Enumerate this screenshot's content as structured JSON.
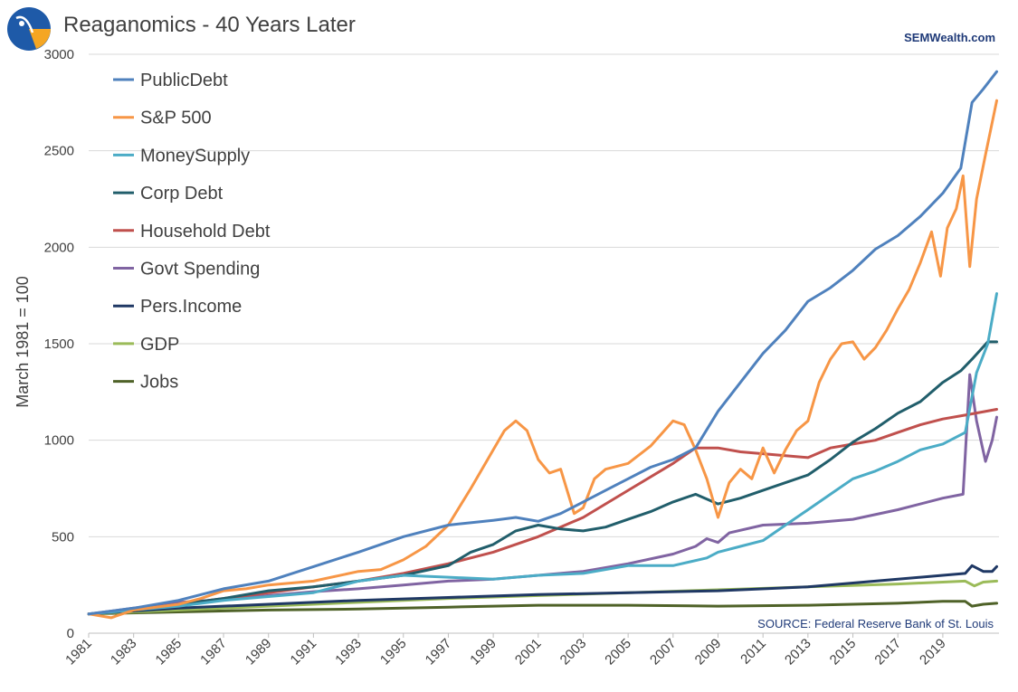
{
  "header": {
    "title": "Reaganomics - 40 Years Later",
    "brand": "SEMWealth.com"
  },
  "logo": {
    "icon": "semwealth-logo-icon",
    "colors": [
      "#1e5aa8",
      "#f5a623",
      "#ffffff"
    ]
  },
  "chart_data": {
    "type": "line",
    "title": "Reaganomics - 40 Years Later",
    "ylabel": "March 1981 = 100",
    "xlabel": "",
    "source": "SOURCE:  Federal Reserve Bank of St. Louis",
    "ylim": [
      0,
      3000
    ],
    "xlim": [
      1981,
      2021.5
    ],
    "yticks": [
      0,
      500,
      1000,
      1500,
      2000,
      2500,
      3000
    ],
    "xticks": [
      1981,
      1983,
      1985,
      1987,
      1989,
      1991,
      1993,
      1995,
      1997,
      1999,
      2001,
      2003,
      2005,
      2007,
      2009,
      2011,
      2013,
      2015,
      2017,
      2019
    ],
    "grid": "horizontal",
    "legend_position": "top-left",
    "series": [
      {
        "name": "PublicDebt",
        "color": "#4f81bd",
        "points": [
          [
            1981,
            100
          ],
          [
            1983,
            130
          ],
          [
            1985,
            170
          ],
          [
            1987,
            230
          ],
          [
            1989,
            270
          ],
          [
            1991,
            345
          ],
          [
            1993,
            420
          ],
          [
            1995,
            500
          ],
          [
            1997,
            560
          ],
          [
            1999,
            585
          ],
          [
            2000,
            600
          ],
          [
            2001,
            580
          ],
          [
            2002,
            620
          ],
          [
            2003,
            680
          ],
          [
            2004,
            740
          ],
          [
            2005,
            800
          ],
          [
            2006,
            860
          ],
          [
            2007,
            900
          ],
          [
            2008,
            960
          ],
          [
            2009,
            1150
          ],
          [
            2010,
            1300
          ],
          [
            2011,
            1450
          ],
          [
            2012,
            1570
          ],
          [
            2013,
            1720
          ],
          [
            2014,
            1790
          ],
          [
            2015,
            1880
          ],
          [
            2016,
            1990
          ],
          [
            2017,
            2060
          ],
          [
            2018,
            2160
          ],
          [
            2019,
            2280
          ],
          [
            2019.8,
            2410
          ],
          [
            2020.3,
            2750
          ],
          [
            2020.8,
            2820
          ],
          [
            2021.4,
            2910
          ]
        ]
      },
      {
        "name": "S&P 500",
        "color": "#f79646",
        "points": [
          [
            1981,
            100
          ],
          [
            1982,
            80
          ],
          [
            1983,
            120
          ],
          [
            1985,
            150
          ],
          [
            1986,
            180
          ],
          [
            1987,
            220
          ],
          [
            1988,
            230
          ],
          [
            1989,
            250
          ],
          [
            1991,
            270
          ],
          [
            1993,
            320
          ],
          [
            1994,
            330
          ],
          [
            1995,
            380
          ],
          [
            1996,
            450
          ],
          [
            1997,
            560
          ],
          [
            1998,
            750
          ],
          [
            1999,
            950
          ],
          [
            1999.5,
            1050
          ],
          [
            2000,
            1100
          ],
          [
            2000.5,
            1050
          ],
          [
            2001,
            900
          ],
          [
            2001.5,
            830
          ],
          [
            2002,
            850
          ],
          [
            2002.6,
            620
          ],
          [
            2003,
            650
          ],
          [
            2003.5,
            800
          ],
          [
            2004,
            850
          ],
          [
            2005,
            880
          ],
          [
            2006,
            970
          ],
          [
            2007,
            1100
          ],
          [
            2007.5,
            1080
          ],
          [
            2008,
            950
          ],
          [
            2008.5,
            800
          ],
          [
            2009,
            600
          ],
          [
            2009.5,
            780
          ],
          [
            2010,
            850
          ],
          [
            2010.5,
            800
          ],
          [
            2011,
            960
          ],
          [
            2011.5,
            830
          ],
          [
            2012,
            950
          ],
          [
            2012.5,
            1050
          ],
          [
            2013,
            1100
          ],
          [
            2013.5,
            1300
          ],
          [
            2014,
            1420
          ],
          [
            2014.5,
            1500
          ],
          [
            2015,
            1510
          ],
          [
            2015.5,
            1420
          ],
          [
            2016,
            1480
          ],
          [
            2016.5,
            1570
          ],
          [
            2017,
            1680
          ],
          [
            2017.5,
            1780
          ],
          [
            2018,
            1920
          ],
          [
            2018.5,
            2080
          ],
          [
            2018.9,
            1850
          ],
          [
            2019.2,
            2100
          ],
          [
            2019.6,
            2200
          ],
          [
            2019.9,
            2370
          ],
          [
            2020.2,
            1900
          ],
          [
            2020.5,
            2250
          ],
          [
            2020.9,
            2480
          ],
          [
            2021.4,
            2760
          ]
        ]
      },
      {
        "name": "MoneySupply",
        "color": "#4bacc6",
        "points": [
          [
            1981,
            100
          ],
          [
            1983,
            120
          ],
          [
            1985,
            140
          ],
          [
            1987,
            170
          ],
          [
            1989,
            190
          ],
          [
            1991,
            210
          ],
          [
            1993,
            270
          ],
          [
            1995,
            300
          ],
          [
            1997,
            290
          ],
          [
            1999,
            280
          ],
          [
            2001,
            300
          ],
          [
            2003,
            310
          ],
          [
            2005,
            350
          ],
          [
            2007,
            350
          ],
          [
            2008.5,
            390
          ],
          [
            2009,
            420
          ],
          [
            2010,
            450
          ],
          [
            2011,
            480
          ],
          [
            2012,
            560
          ],
          [
            2013,
            640
          ],
          [
            2014,
            720
          ],
          [
            2015,
            800
          ],
          [
            2016,
            840
          ],
          [
            2017,
            890
          ],
          [
            2018,
            950
          ],
          [
            2019,
            980
          ],
          [
            2020,
            1040
          ],
          [
            2020.5,
            1350
          ],
          [
            2021,
            1500
          ],
          [
            2021.4,
            1760
          ]
        ]
      },
      {
        "name": "Corp Debt",
        "color": "#215e6b",
        "points": [
          [
            1981,
            100
          ],
          [
            1983,
            120
          ],
          [
            1985,
            150
          ],
          [
            1987,
            180
          ],
          [
            1989,
            220
          ],
          [
            1991,
            240
          ],
          [
            1993,
            270
          ],
          [
            1995,
            300
          ],
          [
            1997,
            350
          ],
          [
            1998,
            420
          ],
          [
            1999,
            460
          ],
          [
            2000,
            530
          ],
          [
            2001,
            560
          ],
          [
            2002,
            540
          ],
          [
            2003,
            530
          ],
          [
            2004,
            550
          ],
          [
            2005,
            590
          ],
          [
            2006,
            630
          ],
          [
            2007,
            680
          ],
          [
            2008,
            720
          ],
          [
            2009,
            670
          ],
          [
            2010,
            700
          ],
          [
            2011,
            740
          ],
          [
            2012,
            780
          ],
          [
            2013,
            820
          ],
          [
            2014,
            900
          ],
          [
            2015,
            990
          ],
          [
            2016,
            1060
          ],
          [
            2017,
            1140
          ],
          [
            2018,
            1200
          ],
          [
            2019,
            1300
          ],
          [
            2019.8,
            1360
          ],
          [
            2020.3,
            1420
          ],
          [
            2021,
            1510
          ],
          [
            2021.4,
            1510
          ]
        ]
      },
      {
        "name": "Household Debt",
        "color": "#c0504d",
        "points": [
          [
            1981,
            100
          ],
          [
            1983,
            120
          ],
          [
            1985,
            150
          ],
          [
            1987,
            180
          ],
          [
            1989,
            210
          ],
          [
            1991,
            240
          ],
          [
            1993,
            270
          ],
          [
            1995,
            310
          ],
          [
            1997,
            360
          ],
          [
            1999,
            420
          ],
          [
            2001,
            500
          ],
          [
            2003,
            600
          ],
          [
            2005,
            740
          ],
          [
            2007,
            880
          ],
          [
            2008,
            960
          ],
          [
            2009,
            960
          ],
          [
            2010,
            940
          ],
          [
            2011,
            930
          ],
          [
            2012,
            920
          ],
          [
            2013,
            910
          ],
          [
            2014,
            960
          ],
          [
            2015,
            980
          ],
          [
            2016,
            1000
          ],
          [
            2017,
            1040
          ],
          [
            2018,
            1080
          ],
          [
            2019,
            1110
          ],
          [
            2020,
            1130
          ],
          [
            2021.4,
            1160
          ]
        ]
      },
      {
        "name": "Govt Spending",
        "color": "#8064a2",
        "points": [
          [
            1981,
            100
          ],
          [
            1983,
            130
          ],
          [
            1985,
            160
          ],
          [
            1987,
            175
          ],
          [
            1989,
            195
          ],
          [
            1991,
            215
          ],
          [
            1993,
            230
          ],
          [
            1995,
            250
          ],
          [
            1997,
            270
          ],
          [
            1999,
            280
          ],
          [
            2001,
            300
          ],
          [
            2003,
            320
          ],
          [
            2005,
            360
          ],
          [
            2007,
            410
          ],
          [
            2008,
            450
          ],
          [
            2008.5,
            490
          ],
          [
            2009,
            470
          ],
          [
            2009.5,
            520
          ],
          [
            2011,
            560
          ],
          [
            2013,
            570
          ],
          [
            2015,
            590
          ],
          [
            2017,
            640
          ],
          [
            2019,
            700
          ],
          [
            2019.9,
            720
          ],
          [
            2020.2,
            1340
          ],
          [
            2020.5,
            1100
          ],
          [
            2020.9,
            890
          ],
          [
            2021.2,
            1000
          ],
          [
            2021.4,
            1120
          ]
        ]
      },
      {
        "name": "Pers.Income",
        "color": "#1f3864",
        "points": [
          [
            1981,
            100
          ],
          [
            1985,
            130
          ],
          [
            1989,
            150
          ],
          [
            1993,
            170
          ],
          [
            1997,
            185
          ],
          [
            2001,
            200
          ],
          [
            2005,
            210
          ],
          [
            2009,
            220
          ],
          [
            2013,
            240
          ],
          [
            2017,
            280
          ],
          [
            2019,
            300
          ],
          [
            2020,
            310
          ],
          [
            2020.3,
            350
          ],
          [
            2020.8,
            320
          ],
          [
            2021.2,
            320
          ],
          [
            2021.4,
            345
          ]
        ]
      },
      {
        "name": "GDP",
        "color": "#9bbb59",
        "points": [
          [
            1981,
            100
          ],
          [
            1985,
            120
          ],
          [
            1989,
            140
          ],
          [
            1993,
            160
          ],
          [
            1997,
            180
          ],
          [
            2001,
            195
          ],
          [
            2005,
            210
          ],
          [
            2009,
            225
          ],
          [
            2013,
            240
          ],
          [
            2017,
            255
          ],
          [
            2019,
            265
          ],
          [
            2020,
            270
          ],
          [
            2020.4,
            245
          ],
          [
            2020.8,
            265
          ],
          [
            2021.4,
            270
          ]
        ]
      },
      {
        "name": "Jobs",
        "color": "#4f6228",
        "points": [
          [
            1981,
            100
          ],
          [
            1985,
            110
          ],
          [
            1989,
            120
          ],
          [
            1993,
            125
          ],
          [
            1997,
            135
          ],
          [
            2001,
            145
          ],
          [
            2005,
            145
          ],
          [
            2009,
            140
          ],
          [
            2013,
            145
          ],
          [
            2017,
            155
          ],
          [
            2019,
            165
          ],
          [
            2020,
            165
          ],
          [
            2020.3,
            140
          ],
          [
            2020.8,
            150
          ],
          [
            2021.4,
            155
          ]
        ]
      }
    ]
  }
}
